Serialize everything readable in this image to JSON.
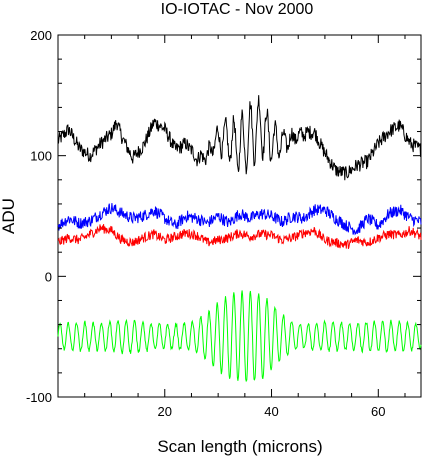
{
  "chart_data": {
    "type": "line",
    "title": "IO-IOTAC - Nov 2000",
    "xlabel": "Scan length (microns)",
    "ylabel": "ADU",
    "xlim": [
      0,
      68
    ],
    "ylim": [
      -100,
      200
    ],
    "xticks": [
      20,
      40,
      60
    ],
    "xtick_labels": [
      "20",
      "40",
      "60"
    ],
    "yticks": [
      -100,
      0,
      100,
      200
    ],
    "ytick_labels": [
      "-100",
      "0",
      "100",
      "200"
    ],
    "grid": false,
    "legend": "none",
    "series": [
      {
        "color": "#000000",
        "description": "noisy baseline ~110 with interference fringe packet centered near 36 microns",
        "x": [
          0,
          2,
          4,
          6,
          8,
          10,
          11,
          12,
          14,
          16,
          18,
          20,
          22,
          24,
          26,
          28,
          30,
          32,
          34,
          36,
          38,
          40,
          42,
          44,
          46,
          48,
          50,
          52,
          54,
          56,
          58,
          60,
          62,
          64,
          66,
          68
        ],
        "y": [
          112,
          122,
          106,
          100,
          110,
          118,
          128,
          115,
          98,
          108,
          128,
          122,
          105,
          110,
          98,
          100,
          115,
          112,
          108,
          118,
          125,
          112,
          110,
          115,
          118,
          120,
          102,
          88,
          85,
          92,
          95,
          110,
          120,
          125,
          110,
          105
        ]
      },
      {
        "color": "#0000ff",
        "description": "noisy trace ~47 with weak fringe modulation",
        "x": [
          0,
          2,
          4,
          6,
          8,
          10,
          12,
          14,
          16,
          18,
          20,
          22,
          24,
          26,
          28,
          30,
          32,
          34,
          36,
          38,
          40,
          42,
          44,
          46,
          48,
          50,
          52,
          54,
          56,
          58,
          60,
          62,
          64,
          66,
          68
        ],
        "y": [
          42,
          48,
          44,
          46,
          52,
          57,
          52,
          48,
          50,
          55,
          48,
          42,
          50,
          48,
          44,
          50,
          44,
          52,
          48,
          52,
          50,
          45,
          50,
          48,
          55,
          55,
          48,
          42,
          38,
          48,
          42,
          52,
          55,
          48,
          45
        ]
      },
      {
        "color": "#ff0000",
        "description": "noisy trace ~32",
        "x": [
          0,
          2,
          4,
          6,
          8,
          10,
          12,
          14,
          16,
          18,
          20,
          22,
          24,
          26,
          28,
          30,
          32,
          34,
          36,
          38,
          40,
          42,
          44,
          46,
          48,
          50,
          52,
          54,
          56,
          58,
          60,
          62,
          64,
          66,
          68
        ],
        "y": [
          28,
          32,
          30,
          35,
          40,
          38,
          30,
          28,
          32,
          35,
          30,
          33,
          36,
          34,
          28,
          30,
          32,
          36,
          33,
          35,
          34,
          30,
          32,
          36,
          38,
          30,
          28,
          26,
          30,
          28,
          32,
          35,
          34,
          38,
          33
        ]
      },
      {
        "color": "#00ff00",
        "description": "fringe signal centered near -50 with packet peak amplitude ~38 at ~36 microns",
        "x": [
          0,
          4,
          8,
          12,
          16,
          20,
          24,
          26,
          28,
          30,
          32,
          34,
          36,
          38,
          40,
          42,
          44,
          46,
          50,
          54,
          58,
          62,
          66,
          68
        ],
        "y": [
          -50,
          -50,
          -50,
          -50,
          -50,
          -50,
          -50,
          -50,
          -50,
          -50,
          -50,
          -50,
          -50,
          -50,
          -50,
          -50,
          -50,
          -50,
          -50,
          -50,
          -50,
          -50,
          -50,
          -50
        ],
        "amplitude": [
          10,
          12,
          11,
          14,
          12,
          10,
          11,
          14,
          20,
          28,
          34,
          37,
          38,
          36,
          28,
          18,
          12,
          10,
          12,
          11,
          12,
          13,
          11,
          10
        ]
      }
    ]
  }
}
